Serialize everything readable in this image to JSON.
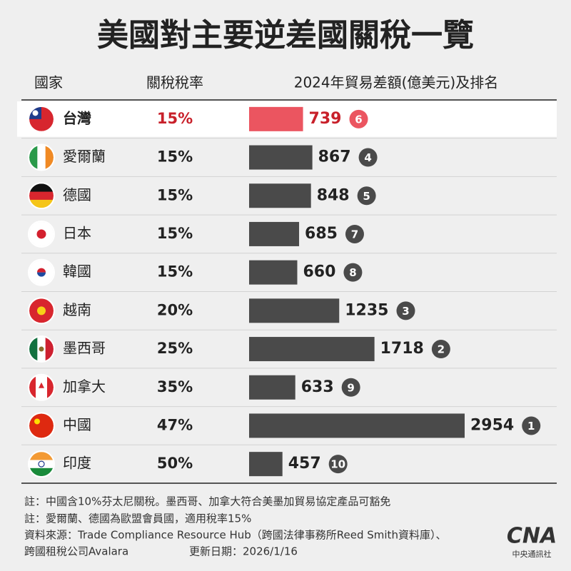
{
  "chart_data": {
    "type": "bar",
    "orientation": "horizontal",
    "title": "美國對主要逆差國關稅一覽",
    "headers": [
      "國家",
      "關稅稅率",
      "2024年貿易差額(億美元)及排名"
    ],
    "categories": [
      "台灣",
      "愛爾蘭",
      "德國",
      "日本",
      "韓國",
      "越南",
      "墨西哥",
      "加拿大",
      "中國",
      "印度"
    ],
    "tariff_rates": [
      "15%",
      "15%",
      "15%",
      "15%",
      "15%",
      "20%",
      "25%",
      "35%",
      "47%",
      "50%"
    ],
    "values": [
      739,
      867,
      848,
      685,
      660,
      1235,
      1718,
      633,
      2954,
      457
    ],
    "ranks": [
      "6",
      "4",
      "5",
      "7",
      "8",
      "3",
      "2",
      "9",
      "1",
      "10"
    ],
    "colors": [
      "#eb5560",
      "#4a4a4a",
      "#4a4a4a",
      "#4a4a4a",
      "#4a4a4a",
      "#4a4a4a",
      "#4a4a4a",
      "#4a4a4a",
      "#4a4a4a",
      "#4a4a4a"
    ],
    "text_colors": [
      "#c8202a",
      "#222222",
      "#222222",
      "#222222",
      "#222222",
      "#222222",
      "#222222",
      "#222222",
      "#222222",
      "#222222"
    ],
    "notes": [
      "註：中國含10%芬太尼關稅。墨西哥、加拿大符合美墨加貿易協定產品可豁免",
      "註：愛爾蘭、德國為歐盟會員國，適用稅率15%",
      "資料來源：Trade Compliance Resource Hub（跨國法律事務所Reed Smith資料庫）、",
      "跨國租稅公司Avalara"
    ],
    "updated": "更新日期：2026/1/16",
    "logo": "CNA",
    "logo_caption": "中央通訊社"
  }
}
